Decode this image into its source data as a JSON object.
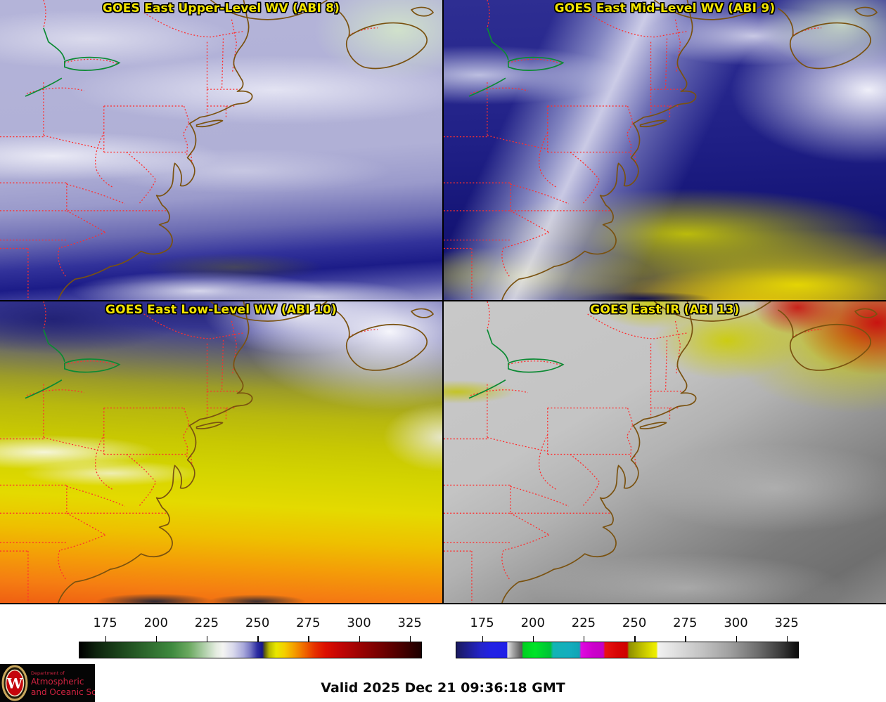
{
  "panels": [
    {
      "band": "upper_wv",
      "title": "GOES East Upper-Level WV (ABI 8)"
    },
    {
      "band": "mid_wv",
      "title": "GOES East Mid-Level WV (ABI 9)"
    },
    {
      "band": "low_wv",
      "title": "GOES East Low-Level WV (ABI 10)"
    },
    {
      "band": "ir",
      "title": "GOES East IR (ABI 13)"
    }
  ],
  "colorbars": [
    {
      "id": "wv_colorbar",
      "tick_labels": [
        175,
        200,
        225,
        250,
        275,
        300,
        325
      ],
      "stops": [
        [
          0,
          "#000000"
        ],
        [
          5,
          "#0d230d"
        ],
        [
          12,
          "#1b451b"
        ],
        [
          20,
          "#2e6a2e"
        ],
        [
          27,
          "#3f8a3f"
        ],
        [
          32,
          "#6aa85f"
        ],
        [
          36,
          "#a7cba0"
        ],
        [
          40,
          "#e4ece0"
        ],
        [
          42,
          "#f4f4f2"
        ],
        [
          45,
          "#d9d9ec"
        ],
        [
          48,
          "#a9a9db"
        ],
        [
          50,
          "#7777c4"
        ],
        [
          52,
          "#2e2ea2"
        ],
        [
          53.5,
          "#16168c"
        ],
        [
          54.2,
          "#5c5c10"
        ],
        [
          55.5,
          "#b8b800"
        ],
        [
          57.5,
          "#e8e800"
        ],
        [
          60,
          "#f4cf00"
        ],
        [
          63,
          "#f49b00"
        ],
        [
          66,
          "#ef6400"
        ],
        [
          69,
          "#e62e00"
        ],
        [
          72,
          "#dc0f00"
        ],
        [
          76,
          "#c40505"
        ],
        [
          82,
          "#9c0202"
        ],
        [
          88,
          "#750101"
        ],
        [
          94,
          "#4a0000"
        ],
        [
          100,
          "#1c0000"
        ]
      ]
    },
    {
      "id": "ir_colorbar",
      "tick_labels": [
        175,
        200,
        225,
        250,
        275,
        300,
        325
      ],
      "stops": [
        [
          0,
          "#1a1a5e"
        ],
        [
          4,
          "#20209a"
        ],
        [
          7,
          "#2424c8"
        ],
        [
          10,
          "#2222e4"
        ],
        [
          14.8,
          "#2020e8"
        ],
        [
          15,
          "#e0e0e0"
        ],
        [
          16.5,
          "#a8a8a8"
        ],
        [
          18.5,
          "#6a6a6a"
        ],
        [
          19.2,
          "#585858"
        ],
        [
          19.5,
          "#00d020"
        ],
        [
          23,
          "#00e428"
        ],
        [
          27.5,
          "#00c236"
        ],
        [
          28.3,
          "#12b4b4"
        ],
        [
          33,
          "#14aebe"
        ],
        [
          36,
          "#12a4b4"
        ],
        [
          36.5,
          "#e00ae0"
        ],
        [
          40,
          "#cc00cc"
        ],
        [
          43,
          "#c400c4"
        ],
        [
          43.5,
          "#ea1212"
        ],
        [
          47,
          "#d80404"
        ],
        [
          50,
          "#ce0000"
        ],
        [
          50.5,
          "#8e8e00"
        ],
        [
          54,
          "#bcbc00"
        ],
        [
          57.5,
          "#e6e600"
        ],
        [
          58.5,
          "#eeee00"
        ],
        [
          59,
          "#f2f2f2"
        ],
        [
          65,
          "#dcdcdc"
        ],
        [
          72,
          "#c2c2c2"
        ],
        [
          80,
          "#a0a0a0"
        ],
        [
          88,
          "#6e6e6e"
        ],
        [
          95,
          "#3a3a3a"
        ],
        [
          100,
          "#0c0c0c"
        ]
      ]
    }
  ],
  "colorbar_axis": {
    "value_min": 162,
    "value_max": 331
  },
  "footer": {
    "valid_text": "Valid 2025 Dec 21 09:36:18 GMT"
  },
  "logo": {
    "dept": "Department of",
    "line1": "Atmospheric",
    "line2": "and Oceanic Sciences",
    "crest_letter": "W",
    "red": "#c5050c",
    "text_red": "#cf2340"
  },
  "colors": {
    "title_yellow": "#f2e400",
    "state_border_red": "#ff2e2e",
    "coastline_brown": "#7a5210",
    "lakeshore_green": "#0c8a34"
  }
}
